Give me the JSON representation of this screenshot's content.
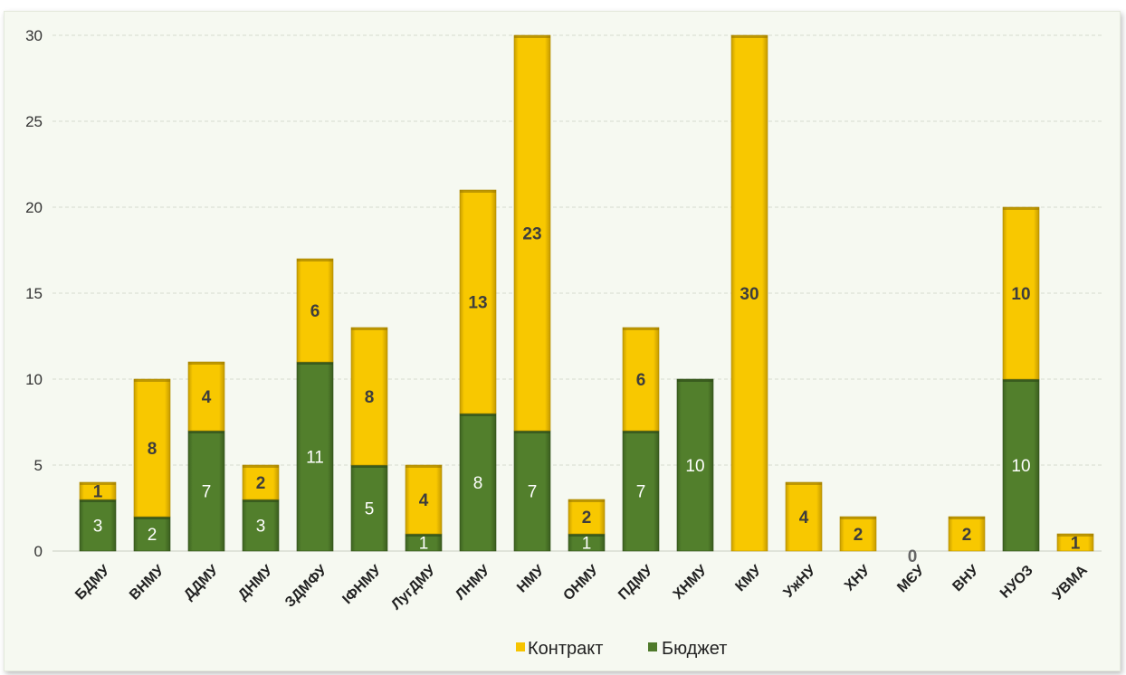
{
  "chart_data": {
    "type": "bar",
    "stacked": true,
    "categories": [
      "БДМУ",
      "ВНМУ",
      "ДДМУ",
      "ДНМУ",
      "ЗДМФУ",
      "ІФНМУ",
      "ЛугДМУ",
      "ЛНМУ",
      "НМУ",
      "ОНМУ",
      "ПДМУ",
      "ХНМУ",
      "КМУ",
      "УжНУ",
      "ХНУ",
      "МЄУ",
      "ВНУ",
      "НУОЗ",
      "УВМА"
    ],
    "series": [
      {
        "name": "Бюджет",
        "color": "#4f7a2b",
        "values": [
          3,
          2,
          7,
          3,
          11,
          5,
          1,
          8,
          7,
          1,
          7,
          10,
          0,
          0,
          0,
          0,
          0,
          10,
          0
        ]
      },
      {
        "name": "Контракт",
        "color": "#f6c400",
        "values": [
          1,
          8,
          4,
          2,
          6,
          8,
          4,
          13,
          23,
          2,
          6,
          0,
          30,
          4,
          2,
          0,
          2,
          10,
          1
        ]
      }
    ],
    "zero_total_label": "0",
    "ylim": [
      0,
      30
    ],
    "yticks": [
      "0",
      "5",
      "10",
      "15",
      "20",
      "25",
      "30"
    ],
    "grid": true,
    "legend": {
      "position": "bottom",
      "entries": [
        "Контракт",
        "Бюджет"
      ]
    }
  }
}
